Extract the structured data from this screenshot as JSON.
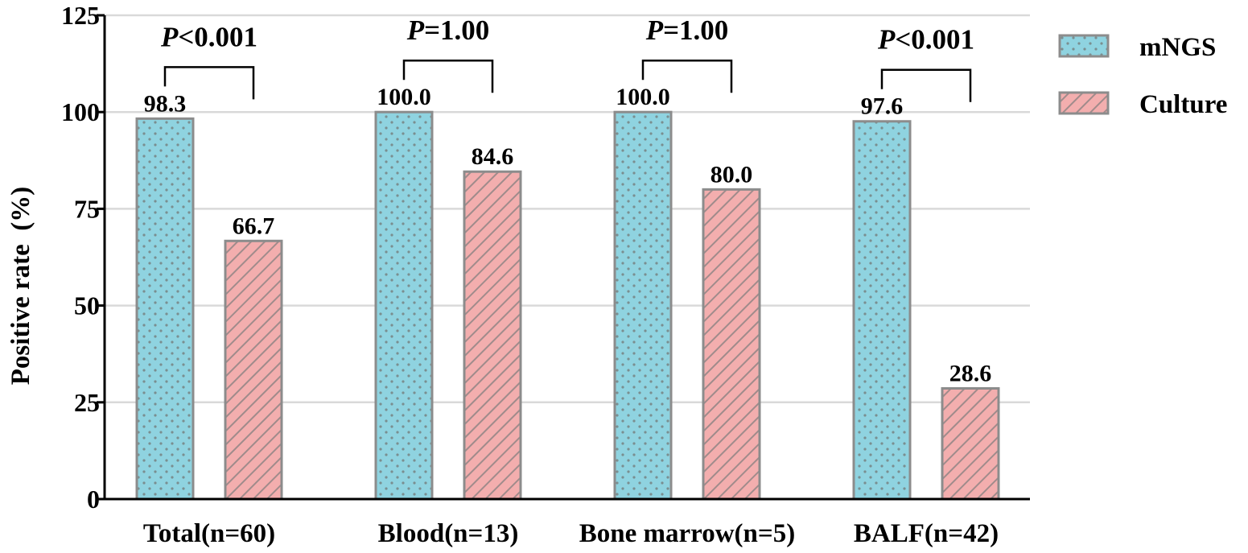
{
  "chart_data": {
    "type": "bar",
    "title": "",
    "xlabel": "",
    "ylabel": "Positive rate  (%)",
    "ylim": [
      0,
      125
    ],
    "yticks": [
      0,
      25,
      50,
      75,
      100,
      125
    ],
    "grid": true,
    "legend_position": "top-right",
    "categories": [
      "Total(n=60)",
      "Blood(n=13)",
      "Bone marrow(n=5)",
      "BALF(n=42)"
    ],
    "series": [
      {
        "name": "mNGS",
        "values": [
          98.3,
          100.0,
          100.0,
          97.6
        ],
        "labels": [
          "98.3",
          "100.0",
          "100.0",
          "97.6"
        ],
        "color": "#8fd3e0"
      },
      {
        "name": "Culture",
        "values": [
          66.7,
          84.6,
          80.0,
          28.6
        ],
        "labels": [
          "66.7",
          "84.6",
          "80.0",
          "28.6"
        ],
        "color": "#f3aeae"
      }
    ],
    "annotations": [
      {
        "p_label": "P",
        "p_value": "<0.001"
      },
      {
        "p_label": "P",
        "p_value": "=1.00"
      },
      {
        "p_label": "P",
        "p_value": "=1.00"
      },
      {
        "p_label": "P",
        "p_value": "<0.001"
      }
    ],
    "colors": {
      "grid": "#d9d9d9",
      "bar_stroke": "#8c8c8c",
      "dot": "#7a8e90",
      "hatch": "#a08b8b",
      "axis": "#000000"
    }
  }
}
